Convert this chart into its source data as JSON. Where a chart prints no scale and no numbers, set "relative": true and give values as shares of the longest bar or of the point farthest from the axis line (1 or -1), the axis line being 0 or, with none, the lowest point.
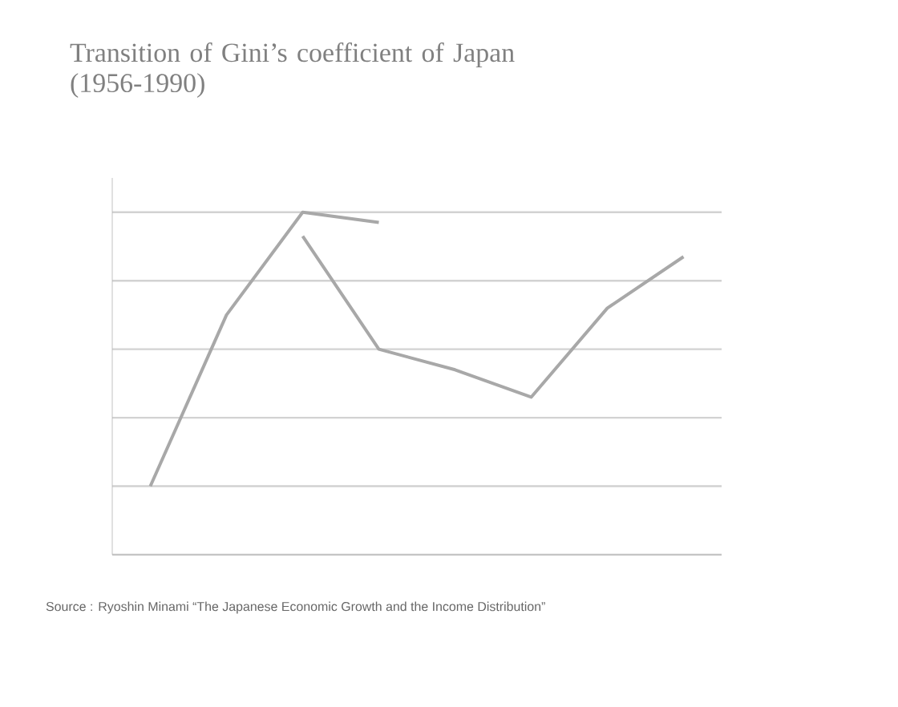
{
  "chart_data": {
    "type": "line",
    "title": "Transition of Gini’s coefficient of Japan (1956-1990)",
    "relative": true,
    "categories": [
      null,
      null,
      null,
      null,
      null,
      null,
      null,
      null
    ],
    "series": [
      {
        "color": "#a8a8a8",
        "values": [
          0.2,
          0.7,
          1,
          0.97,
          null,
          null,
          null,
          null
        ]
      },
      {
        "color": "#a8a8a8",
        "values": [
          null,
          null,
          0.93,
          0.6,
          0.54,
          0.46,
          0.72,
          0.87
        ]
      }
    ],
    "grid": "y",
    "marker": "none",
    "line_style": "solid",
    "annotations": [
      "Source : Ryoshin Minami “The Japanese Economic Growth and the Income Distribution”"
    ]
  }
}
